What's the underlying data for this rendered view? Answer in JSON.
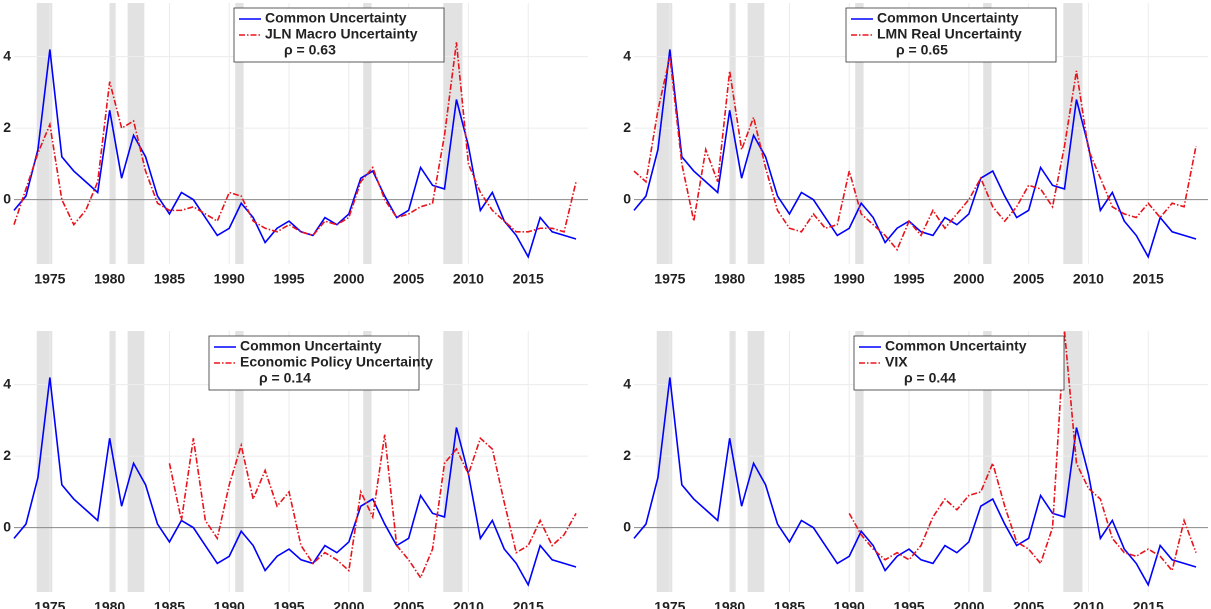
{
  "chart_data": [
    {
      "type": "line",
      "annotation": "ρ = 0.63",
      "x": [
        1972,
        1973,
        1974,
        1975,
        1976,
        1977,
        1978,
        1979,
        1980,
        1981,
        1982,
        1983,
        1984,
        1985,
        1986,
        1987,
        1988,
        1989,
        1990,
        1991,
        1992,
        1993,
        1994,
        1995,
        1996,
        1997,
        1998,
        1999,
        2000,
        2001,
        2002,
        2003,
        2004,
        2005,
        2006,
        2007,
        2008,
        2009,
        2010,
        2011,
        2012,
        2013,
        2014,
        2015,
        2016,
        2017,
        2018,
        2019
      ],
      "series": [
        {
          "name": "Common Uncertainty",
          "color": "#0000ff",
          "values": [
            -0.3,
            0.1,
            1.4,
            4.2,
            1.2,
            0.8,
            0.5,
            0.2,
            2.5,
            0.6,
            1.8,
            1.2,
            0.1,
            -0.4,
            0.2,
            0.0,
            -0.5,
            -1.0,
            -0.8,
            -0.1,
            -0.5,
            -1.2,
            -0.8,
            -0.6,
            -0.9,
            -1.0,
            -0.5,
            -0.7,
            -0.4,
            0.6,
            0.8,
            0.1,
            -0.5,
            -0.3,
            0.9,
            0.4,
            0.3,
            2.8,
            1.5,
            -0.3,
            0.2,
            -0.6,
            -1.0,
            -1.6,
            -0.5,
            -0.9,
            -1.0,
            -1.1
          ]
        },
        {
          "name": "JLN Macro Uncertainty",
          "color": "#e8131b",
          "values": [
            -0.7,
            0.3,
            1.3,
            2.1,
            0.0,
            -0.7,
            -0.3,
            0.5,
            3.3,
            2.0,
            2.2,
            0.8,
            -0.1,
            -0.3,
            -0.3,
            -0.2,
            -0.4,
            -0.6,
            0.2,
            0.1,
            -0.6,
            -0.8,
            -0.9,
            -0.7,
            -0.9,
            -1.0,
            -0.6,
            -0.7,
            -0.5,
            0.5,
            0.9,
            0.0,
            -0.5,
            -0.4,
            -0.2,
            -0.1,
            1.8,
            4.4,
            1.0,
            0.2,
            -0.3,
            -0.6,
            -0.9,
            -0.9,
            -0.8,
            -0.8,
            -0.9,
            0.5
          ]
        }
      ],
      "recessions": [
        [
          1973.9,
          1975.2
        ],
        [
          1980.0,
          1980.5
        ],
        [
          1981.5,
          1982.9
        ],
        [
          1990.5,
          1991.2
        ],
        [
          2001.2,
          2001.9
        ],
        [
          2007.9,
          2009.5
        ]
      ],
      "xlim": [
        1972,
        2020
      ],
      "xticks": [
        1975,
        1980,
        1985,
        1990,
        1995,
        2000,
        2005,
        2010,
        2015
      ],
      "ylim": [
        -1.8,
        5.5
      ],
      "yticks": [
        0,
        2,
        4
      ],
      "grid": true
    },
    {
      "type": "line",
      "annotation": "ρ = 0.65",
      "x": [
        1972,
        1973,
        1974,
        1975,
        1976,
        1977,
        1978,
        1979,
        1980,
        1981,
        1982,
        1983,
        1984,
        1985,
        1986,
        1987,
        1988,
        1989,
        1990,
        1991,
        1992,
        1993,
        1994,
        1995,
        1996,
        1997,
        1998,
        1999,
        2000,
        2001,
        2002,
        2003,
        2004,
        2005,
        2006,
        2007,
        2008,
        2009,
        2010,
        2011,
        2012,
        2013,
        2014,
        2015,
        2016,
        2017,
        2018,
        2019
      ],
      "series": [
        {
          "name": "Common Uncertainty",
          "color": "#0000ff",
          "values": [
            -0.3,
            0.1,
            1.4,
            4.2,
            1.2,
            0.8,
            0.5,
            0.2,
            2.5,
            0.6,
            1.8,
            1.2,
            0.1,
            -0.4,
            0.2,
            0.0,
            -0.5,
            -1.0,
            -0.8,
            -0.1,
            -0.5,
            -1.2,
            -0.8,
            -0.6,
            -0.9,
            -1.0,
            -0.5,
            -0.7,
            -0.4,
            0.6,
            0.8,
            0.1,
            -0.5,
            -0.3,
            0.9,
            0.4,
            0.3,
            2.8,
            1.5,
            -0.3,
            0.2,
            -0.6,
            -1.0,
            -1.6,
            -0.5,
            -0.9,
            -1.0,
            -1.1
          ]
        },
        {
          "name": "LMN Real Uncertainty",
          "color": "#e8131b",
          "values": [
            0.8,
            0.5,
            2.5,
            4.0,
            1.0,
            -0.6,
            1.4,
            0.5,
            3.6,
            1.4,
            2.3,
            0.9,
            -0.3,
            -0.8,
            -0.9,
            -0.4,
            -0.8,
            -0.7,
            0.8,
            -0.4,
            -0.7,
            -1.0,
            -1.4,
            -0.6,
            -1.0,
            -0.3,
            -0.8,
            -0.4,
            0.0,
            0.6,
            -0.2,
            -0.6,
            -0.2,
            0.4,
            0.3,
            -0.2,
            1.5,
            3.6,
            1.4,
            0.6,
            -0.2,
            -0.4,
            -0.5,
            -0.1,
            -0.5,
            -0.1,
            -0.2,
            1.5
          ]
        }
      ],
      "recessions": [
        [
          1973.9,
          1975.2
        ],
        [
          1980.0,
          1980.5
        ],
        [
          1981.5,
          1982.9
        ],
        [
          1990.5,
          1991.2
        ],
        [
          2001.2,
          2001.9
        ],
        [
          2007.9,
          2009.5
        ]
      ],
      "xlim": [
        1972,
        2020
      ],
      "xticks": [
        1975,
        1980,
        1985,
        1990,
        1995,
        2000,
        2005,
        2010,
        2015
      ],
      "ylim": [
        -1.8,
        5.5
      ],
      "yticks": [
        0,
        2,
        4
      ],
      "grid": true
    },
    {
      "type": "line",
      "annotation": "ρ = 0.14",
      "x": [
        1972,
        1973,
        1974,
        1975,
        1976,
        1977,
        1978,
        1979,
        1980,
        1981,
        1982,
        1983,
        1984,
        1985,
        1986,
        1987,
        1988,
        1989,
        1990,
        1991,
        1992,
        1993,
        1994,
        1995,
        1996,
        1997,
        1998,
        1999,
        2000,
        2001,
        2002,
        2003,
        2004,
        2005,
        2006,
        2007,
        2008,
        2009,
        2010,
        2011,
        2012,
        2013,
        2014,
        2015,
        2016,
        2017,
        2018,
        2019
      ],
      "series": [
        {
          "name": "Common Uncertainty",
          "color": "#0000ff",
          "values": [
            -0.3,
            0.1,
            1.4,
            4.2,
            1.2,
            0.8,
            0.5,
            0.2,
            2.5,
            0.6,
            1.8,
            1.2,
            0.1,
            -0.4,
            0.2,
            0.0,
            -0.5,
            -1.0,
            -0.8,
            -0.1,
            -0.5,
            -1.2,
            -0.8,
            -0.6,
            -0.9,
            -1.0,
            -0.5,
            -0.7,
            -0.4,
            0.6,
            0.8,
            0.1,
            -0.5,
            -0.3,
            0.9,
            0.4,
            0.3,
            2.8,
            1.5,
            -0.3,
            0.2,
            -0.6,
            -1.0,
            -1.6,
            -0.5,
            -0.9,
            -1.0,
            -1.1
          ]
        },
        {
          "name": "Economic Policy Uncertainty",
          "color": "#e8131b",
          "values": [
            null,
            null,
            null,
            null,
            null,
            null,
            null,
            null,
            null,
            null,
            null,
            null,
            null,
            1.8,
            0.2,
            2.5,
            0.2,
            -0.3,
            1.2,
            2.3,
            0.8,
            1.6,
            0.6,
            1.0,
            -0.5,
            -1.0,
            -0.7,
            -0.9,
            -1.2,
            1.0,
            0.3,
            2.6,
            -0.5,
            -0.9,
            -1.4,
            -0.6,
            1.8,
            2.2,
            1.5,
            2.5,
            2.2,
            0.7,
            -0.7,
            -0.5,
            0.2,
            -0.5,
            -0.2,
            0.4
          ]
        }
      ],
      "recessions": [
        [
          1973.9,
          1975.2
        ],
        [
          1980.0,
          1980.5
        ],
        [
          1981.5,
          1982.9
        ],
        [
          1990.5,
          1991.2
        ],
        [
          2001.2,
          2001.9
        ],
        [
          2007.9,
          2009.5
        ]
      ],
      "xlim": [
        1972,
        2020
      ],
      "xticks": [
        1975,
        1980,
        1985,
        1990,
        1995,
        2000,
        2005,
        2010,
        2015
      ],
      "ylim": [
        -1.8,
        5.5
      ],
      "yticks": [
        0,
        2,
        4
      ],
      "grid": true
    },
    {
      "type": "line",
      "annotation": "ρ = 0.44",
      "x": [
        1972,
        1973,
        1974,
        1975,
        1976,
        1977,
        1978,
        1979,
        1980,
        1981,
        1982,
        1983,
        1984,
        1985,
        1986,
        1987,
        1988,
        1989,
        1990,
        1991,
        1992,
        1993,
        1994,
        1995,
        1996,
        1997,
        1998,
        1999,
        2000,
        2001,
        2002,
        2003,
        2004,
        2005,
        2006,
        2007,
        2008,
        2009,
        2010,
        2011,
        2012,
        2013,
        2014,
        2015,
        2016,
        2017,
        2018,
        2019
      ],
      "series": [
        {
          "name": "Common Uncertainty",
          "color": "#0000ff",
          "values": [
            -0.3,
            0.1,
            1.4,
            4.2,
            1.2,
            0.8,
            0.5,
            0.2,
            2.5,
            0.6,
            1.8,
            1.2,
            0.1,
            -0.4,
            0.2,
            0.0,
            -0.5,
            -1.0,
            -0.8,
            -0.1,
            -0.5,
            -1.2,
            -0.8,
            -0.6,
            -0.9,
            -1.0,
            -0.5,
            -0.7,
            -0.4,
            0.6,
            0.8,
            0.1,
            -0.5,
            -0.3,
            0.9,
            0.4,
            0.3,
            2.8,
            1.5,
            -0.3,
            0.2,
            -0.6,
            -1.0,
            -1.6,
            -0.5,
            -0.9,
            -1.0,
            -1.1
          ]
        },
        {
          "name": "VIX",
          "color": "#e8131b",
          "values": [
            null,
            null,
            null,
            null,
            null,
            null,
            null,
            null,
            null,
            null,
            null,
            null,
            null,
            null,
            null,
            null,
            null,
            null,
            0.4,
            -0.2,
            -0.6,
            -0.9,
            -0.7,
            -0.9,
            -0.5,
            0.3,
            0.8,
            0.5,
            0.9,
            1.0,
            1.8,
            0.6,
            -0.4,
            -0.6,
            -1.0,
            0.0,
            5.5,
            1.8,
            1.1,
            0.8,
            -0.3,
            -0.7,
            -0.8,
            -0.6,
            -0.8,
            -1.2,
            0.2,
            -0.7
          ]
        }
      ],
      "recessions": [
        [
          1973.9,
          1975.2
        ],
        [
          1980.0,
          1980.5
        ],
        [
          1981.5,
          1982.9
        ],
        [
          1990.5,
          1991.2
        ],
        [
          2001.2,
          2001.9
        ],
        [
          2007.9,
          2009.5
        ]
      ],
      "xlim": [
        1972,
        2020
      ],
      "xticks": [
        1975,
        1980,
        1985,
        1990,
        1995,
        2000,
        2005,
        2010,
        2015
      ],
      "ylim": [
        -1.8,
        5.5
      ],
      "yticks": [
        0,
        2,
        4
      ],
      "grid": true
    }
  ]
}
